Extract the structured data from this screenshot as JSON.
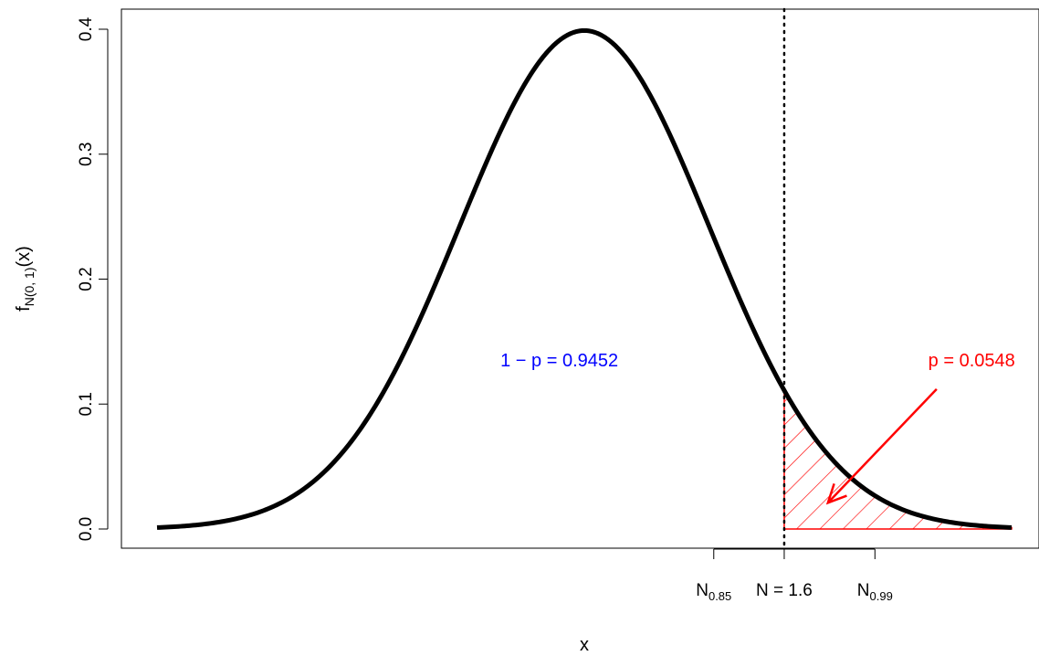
{
  "chart_data": {
    "type": "line",
    "title": "",
    "xlabel": "x",
    "ylabel": {
      "main": "f",
      "sub": "N(0, 1)",
      "tail": "(x)"
    },
    "ylim": [
      0,
      0.4
    ],
    "xlim": [
      -3.42,
      3.42
    ],
    "y_ticks": [
      "0.0",
      "0.1",
      "0.2",
      "0.3",
      "0.4"
    ],
    "y_tick_values": [
      0,
      0.1,
      0.2,
      0.3,
      0.4
    ],
    "x_ticks": [
      {
        "value": 1.036,
        "main": "N",
        "sub": "0.85"
      },
      {
        "value": 1.6,
        "main": "N = 1.6",
        "sub": ""
      },
      {
        "value": 2.326,
        "main": "N",
        "sub": "0.99"
      }
    ],
    "series": [
      {
        "distribution": "normal",
        "mean": 0,
        "sd": 1,
        "color": "#000000"
      }
    ],
    "cutoff": {
      "x": 1.6,
      "style": "dotted",
      "color": "#000000"
    },
    "shaded_region": {
      "from": 1.6,
      "to": 3.42,
      "style": "hatched",
      "color": "#ff0000"
    },
    "annotations": [
      {
        "text": "1 − p = 0.9452",
        "x": -0.2,
        "y": 0.13,
        "color": "#0000ff"
      },
      {
        "text": "p = 0.0548",
        "x": 3.1,
        "y": 0.13,
        "color": "#ff0000"
      }
    ],
    "arrow": {
      "from": [
        2.82,
        0.112
      ],
      "to": [
        1.95,
        0.021
      ],
      "color": "#ff0000"
    },
    "grid": false,
    "legend": "none"
  }
}
